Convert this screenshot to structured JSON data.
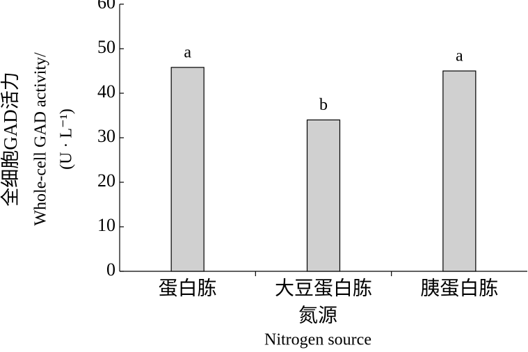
{
  "chart_data": {
    "type": "bar",
    "categories": [
      "蛋白胨",
      "大豆蛋白胨",
      "胰蛋白胨"
    ],
    "values": [
      45.8,
      34,
      45
    ],
    "letters": [
      "a",
      "b",
      "a"
    ],
    "color": "#d0d0d0",
    "ylim": [
      0,
      60
    ],
    "yticks": [
      0,
      10,
      20,
      30,
      40,
      50,
      60
    ],
    "ylabel": [
      "全细胞GAD活力",
      "Whole-cell GAD activity/",
      "(U · L⁻¹)"
    ],
    "xlabel": [
      "氮源",
      "Nitrogen source"
    ]
  }
}
